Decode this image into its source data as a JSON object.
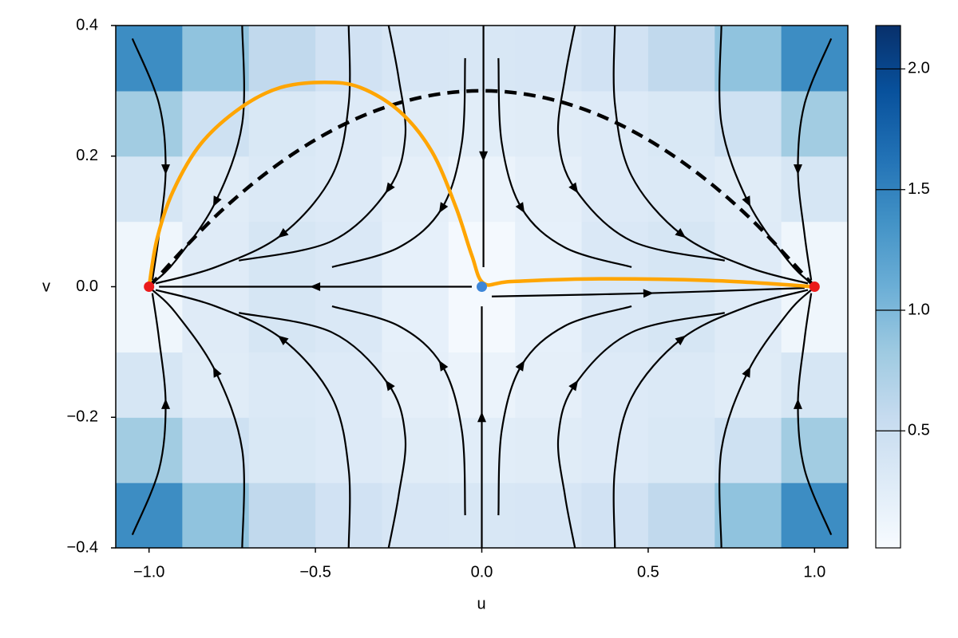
{
  "chart_data": {
    "type": "heatmap",
    "x_label": "u",
    "y_label": "v",
    "xlim": [
      -1.1,
      1.1
    ],
    "ylim": [
      -0.4,
      0.4
    ],
    "xticks": [
      {
        "value": -1,
        "label": "−1.0"
      },
      {
        "value": -0.5,
        "label": "−0.5"
      },
      {
        "value": 0,
        "label": "0.0"
      },
      {
        "value": 0.5,
        "label": "0.5"
      },
      {
        "value": 1,
        "label": "1.0"
      }
    ],
    "yticks": [
      {
        "value": -0.4,
        "label": "−0.4"
      },
      {
        "value": -0.2,
        "label": "−0.2"
      },
      {
        "value": 0,
        "label": "0.0"
      },
      {
        "value": 0.2,
        "label": "0.2"
      },
      {
        "value": 0.4,
        "label": "0.4"
      }
    ],
    "heatmap": {
      "x": [
        -1,
        -0.8,
        -0.6,
        -0.4,
        -0.2,
        0,
        0.2,
        0.4,
        0.6,
        0.8,
        1
      ],
      "y": [
        -0.35,
        -0.25,
        -0.15,
        -0.05,
        0.05,
        0.15,
        0.25,
        0.35
      ],
      "z": [
        [
          1.411,
          0.899,
          0.591,
          0.434,
          0.368,
          0.35,
          0.368,
          0.434,
          0.591,
          0.899,
          1.411
        ],
        [
          0.8,
          0.462,
          0.34,
          0.302,
          0.269,
          0.25,
          0.269,
          0.302,
          0.34,
          0.462,
          0.8
        ],
        [
          0.375,
          0.269,
          0.322,
          0.301,
          0.214,
          0.15,
          0.214,
          0.301,
          0.322,
          0.269,
          0.375
        ],
        [
          0.103,
          0.28,
          0.375,
          0.331,
          0.194,
          0.05,
          0.194,
          0.331,
          0.375,
          0.28,
          0.103
        ],
        [
          0.103,
          0.28,
          0.375,
          0.331,
          0.194,
          0.05,
          0.194,
          0.331,
          0.375,
          0.28,
          0.103
        ],
        [
          0.375,
          0.269,
          0.322,
          0.301,
          0.214,
          0.15,
          0.214,
          0.301,
          0.322,
          0.269,
          0.375
        ],
        [
          0.8,
          0.462,
          0.34,
          0.302,
          0.269,
          0.25,
          0.269,
          0.302,
          0.34,
          0.462,
          0.8
        ],
        [
          1.411,
          0.899,
          0.591,
          0.434,
          0.368,
          0.35,
          0.368,
          0.434,
          0.591,
          0.899,
          1.411
        ]
      ]
    },
    "colormap": [
      "#f7fbff",
      "#deebf7",
      "#c6dbef",
      "#9ecae1",
      "#6baed6",
      "#4292c6",
      "#2171b5",
      "#08519c",
      "#08306b"
    ],
    "colorbar": {
      "lim": [
        0.015,
        2.18
      ],
      "ticks": [
        0.5,
        {
          "value": 1,
          "label": "1.0"
        },
        1.5,
        {
          "value": 2,
          "label": "2.0"
        }
      ]
    },
    "streamline_color": "#000000",
    "streamlines": [
      {
        "u": [
          0.28,
          0.25,
          0.23,
          0.28,
          0.45,
          0.73
        ],
        "v": [
          0.4,
          0.32,
          0.23,
          0.15,
          0.07,
          0.04
        ]
      },
      {
        "u": [
          0.4,
          0.4,
          0.45,
          0.6,
          0.8,
          0.98
        ],
        "v": [
          0.4,
          0.28,
          0.17,
          0.08,
          0.03,
          0.005
        ]
      },
      {
        "u": [
          0.05,
          0.06,
          0.12,
          0.25,
          0.45
        ],
        "v": [
          0.35,
          0.22,
          0.12,
          0.06,
          0.03
        ]
      },
      {
        "u": [
          0.72,
          0.72,
          0.8,
          0.92,
          0.99
        ],
        "v": [
          0.4,
          0.25,
          0.13,
          0.04,
          0.005
        ]
      },
      {
        "u": [
          1.05,
          0.97,
          0.95,
          0.97,
          0.99
        ],
        "v": [
          0.38,
          0.28,
          0.18,
          0.08,
          0.01
        ]
      },
      {
        "u": [
          -0.28,
          -0.25,
          -0.23,
          -0.28,
          -0.45,
          -0.73
        ],
        "v": [
          0.4,
          0.32,
          0.23,
          0.15,
          0.07,
          0.04
        ]
      },
      {
        "u": [
          -0.4,
          -0.4,
          -0.45,
          -0.6,
          -0.8,
          -0.98
        ],
        "v": [
          0.4,
          0.28,
          0.17,
          0.08,
          0.03,
          0.005
        ]
      },
      {
        "u": [
          -0.05,
          -0.06,
          -0.12,
          -0.25,
          -0.45
        ],
        "v": [
          0.35,
          0.22,
          0.12,
          0.06,
          0.03
        ]
      },
      {
        "u": [
          -0.72,
          -0.72,
          -0.8,
          -0.92,
          -0.99
        ],
        "v": [
          0.4,
          0.25,
          0.13,
          0.04,
          0.005
        ]
      },
      {
        "u": [
          -1.05,
          -0.97,
          -0.95,
          -0.97,
          -0.99
        ],
        "v": [
          0.38,
          0.28,
          0.18,
          0.08,
          0.01
        ]
      },
      {
        "u": [
          0.28,
          0.25,
          0.23,
          0.28,
          0.45,
          0.73
        ],
        "v": [
          -0.4,
          -0.32,
          -0.23,
          -0.15,
          -0.07,
          -0.04
        ]
      },
      {
        "u": [
          0.4,
          0.4,
          0.45,
          0.6,
          0.8,
          0.98
        ],
        "v": [
          -0.4,
          -0.28,
          -0.17,
          -0.08,
          -0.03,
          -0.005
        ]
      },
      {
        "u": [
          0.05,
          0.06,
          0.12,
          0.25,
          0.45
        ],
        "v": [
          -0.35,
          -0.22,
          -0.12,
          -0.06,
          -0.03
        ]
      },
      {
        "u": [
          0.72,
          0.72,
          0.8,
          0.92,
          0.99
        ],
        "v": [
          -0.4,
          -0.25,
          -0.13,
          -0.04,
          -0.005
        ]
      },
      {
        "u": [
          1.05,
          0.97,
          0.95,
          0.97,
          0.99
        ],
        "v": [
          -0.38,
          -0.28,
          -0.18,
          -0.08,
          -0.01
        ]
      },
      {
        "u": [
          -0.28,
          -0.25,
          -0.23,
          -0.28,
          -0.45,
          -0.73
        ],
        "v": [
          -0.4,
          -0.32,
          -0.23,
          -0.15,
          -0.07,
          -0.04
        ]
      },
      {
        "u": [
          -0.4,
          -0.4,
          -0.45,
          -0.6,
          -0.8,
          -0.98
        ],
        "v": [
          -0.4,
          -0.28,
          -0.17,
          -0.08,
          -0.03,
          -0.005
        ]
      },
      {
        "u": [
          -0.05,
          -0.06,
          -0.12,
          -0.25,
          -0.45
        ],
        "v": [
          -0.35,
          -0.22,
          -0.12,
          -0.06,
          -0.03
        ]
      },
      {
        "u": [
          -0.72,
          -0.72,
          -0.8,
          -0.92,
          -0.99
        ],
        "v": [
          -0.4,
          -0.25,
          -0.13,
          -0.04,
          -0.005
        ]
      },
      {
        "u": [
          -1.05,
          -0.97,
          -0.95,
          -0.97,
          -0.99
        ],
        "v": [
          -0.38,
          -0.28,
          -0.18,
          -0.08,
          -0.01
        ]
      },
      {
        "u": [
          -0.03,
          -0.5,
          -0.97
        ],
        "v": [
          0,
          0,
          0
        ]
      },
      {
        "u": [
          0.03,
          0.5,
          0.97
        ],
        "v": [
          -0.015,
          -0.01,
          -0.002
        ]
      },
      {
        "u": [
          0,
          0,
          0
        ],
        "v": [
          -0.4,
          -0.2,
          -0.03
        ]
      },
      {
        "u": [
          0.005,
          0.005,
          0.005
        ],
        "v": [
          0.4,
          0.2,
          0.03
        ]
      }
    ],
    "lines": [
      {
        "color": "#000000",
        "dashed": true,
        "u": [
          -1,
          -0.8,
          -0.6,
          -0.4,
          -0.2,
          0,
          0.2,
          0.4,
          0.6,
          0.8,
          1
        ],
        "v": [
          0,
          0.108,
          0.192,
          0.252,
          0.288,
          0.3,
          0.288,
          0.252,
          0.192,
          0.108,
          0
        ]
      },
      {
        "color": "#ffa500",
        "dashed": false,
        "u": [
          -1,
          -0.976,
          -0.928,
          -0.844,
          -0.725,
          -0.605,
          -0.473,
          -0.365,
          -0.246,
          -0.15,
          -0.078,
          -0.03,
          0.006,
          0.09,
          0.353,
          0.713,
          1
        ],
        "v": [
          0,
          0.073,
          0.146,
          0.219,
          0.274,
          0.305,
          0.313,
          0.305,
          0.268,
          0.207,
          0.122,
          0.048,
          0.005,
          0.008,
          0.012,
          0.009,
          0
        ]
      }
    ],
    "points": {
      "u": [
        -1,
        0,
        1
      ],
      "v": [
        0,
        0,
        0
      ],
      "colors": [
        "#ea1b1b",
        "#3d86d8",
        "#ea1b1b"
      ]
    }
  }
}
